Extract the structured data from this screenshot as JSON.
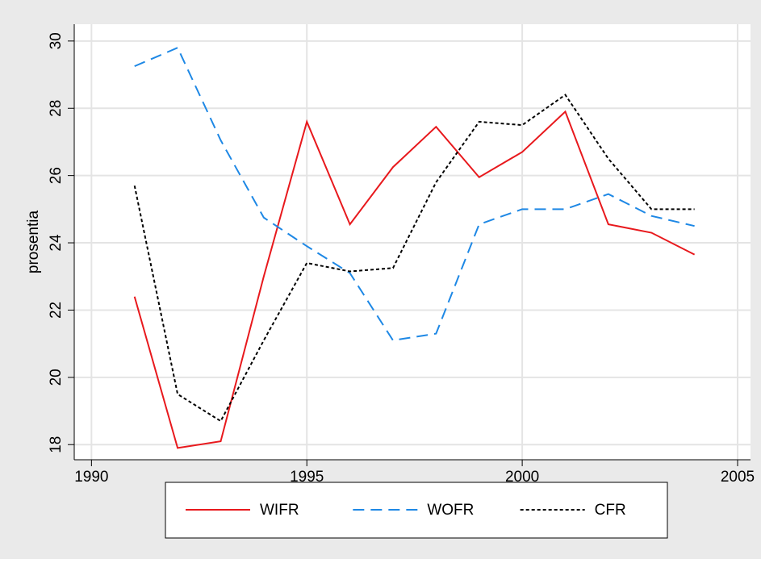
{
  "chart_data": {
    "type": "line",
    "ylabel": "prosentia",
    "x": [
      1991,
      1992,
      1993,
      1994,
      1995,
      1996,
      1997,
      1998,
      1999,
      2000,
      2001,
      2002,
      2003,
      2004
    ],
    "series": [
      {
        "name": "WIFR",
        "color": "#e8191d",
        "dash": "solid",
        "values": [
          22.4,
          17.9,
          18.1,
          23.0,
          27.6,
          24.55,
          26.25,
          27.45,
          25.95,
          26.7,
          27.9,
          24.55,
          24.3,
          23.65
        ]
      },
      {
        "name": "WOFR",
        "color": "#1e88e5",
        "dash": "dashed",
        "values": [
          29.25,
          29.8,
          27.05,
          24.75,
          23.9,
          23.1,
          21.1,
          21.3,
          24.55,
          25.0,
          25.0,
          25.45,
          24.8,
          24.5
        ]
      },
      {
        "name": "CFR",
        "color": "#000000",
        "dash": "dotted",
        "values": [
          25.7,
          19.5,
          18.7,
          21.1,
          23.4,
          23.15,
          23.25,
          25.8,
          27.6,
          27.5,
          28.4,
          26.5,
          25.0,
          25.0
        ]
      }
    ],
    "xlim": [
      1989.6,
      2005.3
    ],
    "xticks": [
      1990,
      1995,
      2000,
      2005
    ],
    "ylim": [
      17.55,
      30.5
    ],
    "yticks": [
      18,
      20,
      22,
      24,
      26,
      28,
      30
    ],
    "grid": true,
    "legend": "bottom"
  }
}
